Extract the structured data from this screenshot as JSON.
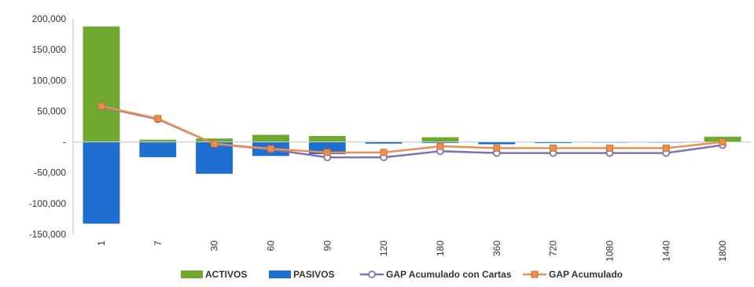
{
  "chart_data": {
    "type": "bar",
    "title": "",
    "xlabel": "",
    "ylabel": "",
    "categories": [
      "1",
      "7",
      "30",
      "60",
      "90",
      "120",
      "180",
      "360",
      "720",
      "1080",
      "1440",
      "1800"
    ],
    "ylim": [
      -150000,
      200000
    ],
    "ytick_values": [
      -150000,
      -100000,
      -50000,
      0,
      50000,
      100000,
      150000,
      200000
    ],
    "ytick_labels": [
      "-150,000",
      "-100,000",
      "-50,000",
      "-",
      "50,000",
      "100,000",
      "150,000",
      "200,000"
    ],
    "grid": false,
    "legend_position": "bottom",
    "series": [
      {
        "name": "ACTIVOS",
        "kind": "bar",
        "color": "#70a830",
        "values": [
          188000,
          4000,
          6000,
          12000,
          10000,
          1000,
          8000,
          0,
          0,
          0,
          0,
          9000
        ]
      },
      {
        "name": "PASIVOS",
        "kind": "bar",
        "color": "#1f6fd1",
        "values": [
          -133000,
          -25000,
          -52000,
          -23000,
          -20000,
          -3000,
          -2000,
          -4000,
          -2000,
          -1000,
          -1000,
          0
        ]
      },
      {
        "name": "GAP Acumulado con Cartas",
        "kind": "line",
        "color": "#7a74b0",
        "marker": "circle",
        "values": [
          57000,
          37000,
          -3000,
          -12000,
          -25000,
          -25000,
          -15000,
          -18000,
          -18000,
          -18000,
          -18000,
          -5000
        ]
      },
      {
        "name": "GAP Acumulado",
        "kind": "line",
        "color": "#ea8f4f",
        "marker": "square",
        "values": [
          58000,
          38000,
          -3000,
          -11000,
          -17000,
          -17000,
          -7000,
          -10000,
          -10000,
          -10000,
          -10000,
          0
        ]
      }
    ]
  }
}
